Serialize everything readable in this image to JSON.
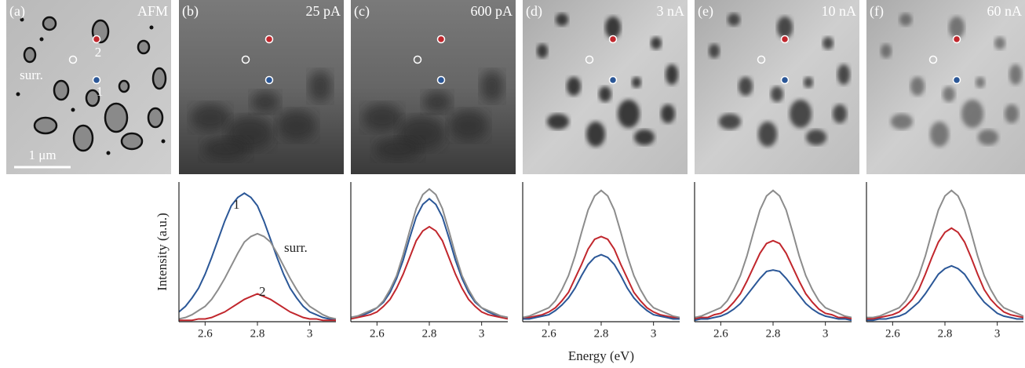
{
  "images": [
    {
      "label": "(a)",
      "title": "AFM"
    },
    {
      "label": "(b)",
      "title": "25 pA"
    },
    {
      "label": "(c)",
      "title": "600 pA"
    },
    {
      "label": "(d)",
      "title": "3 nA"
    },
    {
      "label": "(e)",
      "title": "10 nA"
    },
    {
      "label": "(f)",
      "title": "60 nA"
    }
  ],
  "image_annotations": [
    {
      "text": "surr."
    },
    {
      "text": "2"
    },
    {
      "text": "1"
    }
  ],
  "scale_bar": "1 μm",
  "chart_data": [
    {
      "type": "line",
      "ylabel": "Intensity (a.u.)",
      "annotations": [
        {
          "text": "1"
        },
        {
          "text": "surr."
        },
        {
          "text": "2"
        }
      ],
      "x": [
        2.5,
        2.525,
        2.55,
        2.575,
        2.6,
        2.625,
        2.65,
        2.675,
        2.7,
        2.725,
        2.75,
        2.775,
        2.8,
        2.825,
        2.85,
        2.875,
        2.9,
        2.925,
        2.95,
        2.975,
        3,
        3.025,
        3.05,
        3.075,
        3.1
      ],
      "xlim": [
        2.5,
        3.1
      ],
      "xticks": [
        2.6,
        2.8,
        3
      ],
      "ylim": [
        0,
        1
      ],
      "series": [
        {
          "color": "#2b5797",
          "values": [
            0.07,
            0.11,
            0.17,
            0.24,
            0.34,
            0.46,
            0.59,
            0.72,
            0.83,
            0.89,
            0.92,
            0.89,
            0.83,
            0.72,
            0.59,
            0.46,
            0.34,
            0.24,
            0.17,
            0.11,
            0.07,
            0.05,
            0.03,
            0.02,
            0.02
          ]
        },
        {
          "color": "#8c8c8c",
          "values": [
            0.02,
            0.03,
            0.05,
            0.08,
            0.11,
            0.16,
            0.23,
            0.31,
            0.4,
            0.49,
            0.57,
            0.61,
            0.63,
            0.61,
            0.57,
            0.49,
            0.4,
            0.31,
            0.23,
            0.16,
            0.11,
            0.08,
            0.05,
            0.03,
            0.02
          ]
        },
        {
          "color": "#c1272d",
          "values": [
            0.01,
            0.01,
            0.01,
            0.02,
            0.02,
            0.03,
            0.05,
            0.07,
            0.1,
            0.13,
            0.16,
            0.18,
            0.2,
            0.18,
            0.16,
            0.13,
            0.1,
            0.07,
            0.05,
            0.03,
            0.02,
            0.02,
            0.01,
            0.01,
            0.01
          ]
        }
      ]
    },
    {
      "type": "line",
      "x": [
        2.5,
        2.525,
        2.55,
        2.575,
        2.6,
        2.625,
        2.65,
        2.675,
        2.7,
        2.725,
        2.75,
        2.775,
        2.8,
        2.825,
        2.85,
        2.875,
        2.9,
        2.925,
        2.95,
        2.975,
        3,
        3.025,
        3.05,
        3.075,
        3.1
      ],
      "xlim": [
        2.5,
        3.1
      ],
      "xticks": [
        2.6,
        2.8,
        3
      ],
      "ylim": [
        0,
        1
      ],
      "series": [
        {
          "color": "#2b5797",
          "values": [
            0.03,
            0.04,
            0.05,
            0.07,
            0.1,
            0.14,
            0.21,
            0.31,
            0.44,
            0.6,
            0.75,
            0.84,
            0.88,
            0.84,
            0.75,
            0.6,
            0.44,
            0.31,
            0.21,
            0.14,
            0.1,
            0.07,
            0.05,
            0.04,
            0.03
          ]
        },
        {
          "color": "#c1272d",
          "values": [
            0.02,
            0.03,
            0.04,
            0.05,
            0.07,
            0.11,
            0.16,
            0.24,
            0.34,
            0.46,
            0.58,
            0.65,
            0.68,
            0.65,
            0.58,
            0.46,
            0.34,
            0.24,
            0.16,
            0.11,
            0.07,
            0.05,
            0.04,
            0.03,
            0.02
          ]
        },
        {
          "color": "#8c8c8c",
          "values": [
            0.03,
            0.04,
            0.06,
            0.08,
            0.1,
            0.15,
            0.23,
            0.33,
            0.48,
            0.65,
            0.81,
            0.91,
            0.95,
            0.91,
            0.81,
            0.65,
            0.48,
            0.33,
            0.23,
            0.15,
            0.1,
            0.08,
            0.06,
            0.04,
            0.03
          ]
        }
      ]
    },
    {
      "type": "line",
      "xlabel": "Energy (eV)",
      "x": [
        2.5,
        2.525,
        2.55,
        2.575,
        2.6,
        2.625,
        2.65,
        2.675,
        2.7,
        2.725,
        2.75,
        2.775,
        2.8,
        2.825,
        2.85,
        2.875,
        2.9,
        2.925,
        2.95,
        2.975,
        3,
        3.025,
        3.05,
        3.075,
        3.1
      ],
      "xlim": [
        2.5,
        3.1
      ],
      "xticks": [
        2.6,
        2.8,
        3
      ],
      "ylim": [
        0,
        1
      ],
      "series": [
        {
          "color": "#8c8c8c",
          "values": [
            0.03,
            0.04,
            0.06,
            0.08,
            0.1,
            0.15,
            0.23,
            0.33,
            0.47,
            0.64,
            0.8,
            0.9,
            0.94,
            0.9,
            0.8,
            0.64,
            0.47,
            0.33,
            0.23,
            0.15,
            0.1,
            0.08,
            0.06,
            0.04,
            0.03
          ]
        },
        {
          "color": "#c1272d",
          "values": [
            0.02,
            0.03,
            0.04,
            0.05,
            0.07,
            0.1,
            0.15,
            0.21,
            0.31,
            0.41,
            0.52,
            0.59,
            0.61,
            0.59,
            0.52,
            0.41,
            0.31,
            0.21,
            0.15,
            0.1,
            0.07,
            0.05,
            0.04,
            0.03,
            0.02
          ]
        },
        {
          "color": "#2b5797",
          "values": [
            0.02,
            0.02,
            0.03,
            0.04,
            0.05,
            0.08,
            0.12,
            0.17,
            0.24,
            0.33,
            0.41,
            0.46,
            0.48,
            0.46,
            0.41,
            0.33,
            0.24,
            0.17,
            0.12,
            0.08,
            0.05,
            0.04,
            0.03,
            0.02,
            0.02
          ]
        }
      ]
    },
    {
      "type": "line",
      "x": [
        2.5,
        2.525,
        2.55,
        2.575,
        2.6,
        2.625,
        2.65,
        2.675,
        2.7,
        2.725,
        2.75,
        2.775,
        2.8,
        2.825,
        2.85,
        2.875,
        2.9,
        2.925,
        2.95,
        2.975,
        3,
        3.025,
        3.05,
        3.075,
        3.1
      ],
      "xlim": [
        2.5,
        3.1
      ],
      "xticks": [
        2.6,
        2.8,
        3
      ],
      "ylim": [
        0,
        1
      ],
      "series": [
        {
          "color": "#8c8c8c",
          "values": [
            0.03,
            0.04,
            0.06,
            0.08,
            0.1,
            0.15,
            0.23,
            0.33,
            0.47,
            0.64,
            0.8,
            0.9,
            0.94,
            0.9,
            0.8,
            0.64,
            0.47,
            0.33,
            0.23,
            0.15,
            0.1,
            0.08,
            0.06,
            0.04,
            0.03
          ]
        },
        {
          "color": "#c1272d",
          "values": [
            0.02,
            0.03,
            0.03,
            0.05,
            0.06,
            0.09,
            0.14,
            0.2,
            0.29,
            0.39,
            0.49,
            0.56,
            0.58,
            0.56,
            0.49,
            0.39,
            0.29,
            0.2,
            0.14,
            0.09,
            0.06,
            0.05,
            0.03,
            0.03,
            0.02
          ]
        },
        {
          "color": "#2b5797",
          "values": [
            0.01,
            0.02,
            0.02,
            0.03,
            0.04,
            0.06,
            0.09,
            0.13,
            0.19,
            0.25,
            0.31,
            0.36,
            0.37,
            0.36,
            0.31,
            0.25,
            0.19,
            0.13,
            0.09,
            0.06,
            0.04,
            0.03,
            0.02,
            0.02,
            0.01
          ]
        }
      ]
    },
    {
      "type": "line",
      "x": [
        2.5,
        2.525,
        2.55,
        2.575,
        2.6,
        2.625,
        2.65,
        2.675,
        2.7,
        2.725,
        2.75,
        2.775,
        2.8,
        2.825,
        2.85,
        2.875,
        2.9,
        2.925,
        2.95,
        2.975,
        3,
        3.025,
        3.05,
        3.075,
        3.1
      ],
      "xlim": [
        2.5,
        3.1
      ],
      "xticks": [
        2.6,
        2.8,
        3
      ],
      "ylim": [
        0,
        1
      ],
      "series": [
        {
          "color": "#8c8c8c",
          "values": [
            0.03,
            0.03,
            0.04,
            0.06,
            0.08,
            0.1,
            0.15,
            0.23,
            0.33,
            0.47,
            0.64,
            0.8,
            0.9,
            0.94,
            0.9,
            0.8,
            0.64,
            0.47,
            0.33,
            0.23,
            0.15,
            0.1,
            0.08,
            0.06,
            0.04
          ]
        },
        {
          "color": "#c1272d",
          "values": [
            0.02,
            0.02,
            0.03,
            0.04,
            0.05,
            0.07,
            0.11,
            0.16,
            0.23,
            0.34,
            0.46,
            0.57,
            0.64,
            0.67,
            0.64,
            0.57,
            0.46,
            0.34,
            0.23,
            0.16,
            0.11,
            0.07,
            0.05,
            0.04,
            0.03
          ]
        },
        {
          "color": "#2b5797",
          "values": [
            0.01,
            0.01,
            0.02,
            0.02,
            0.03,
            0.04,
            0.06,
            0.1,
            0.14,
            0.2,
            0.27,
            0.34,
            0.38,
            0.4,
            0.38,
            0.34,
            0.27,
            0.2,
            0.14,
            0.1,
            0.06,
            0.04,
            0.03,
            0.02,
            0.02
          ]
        }
      ]
    }
  ]
}
